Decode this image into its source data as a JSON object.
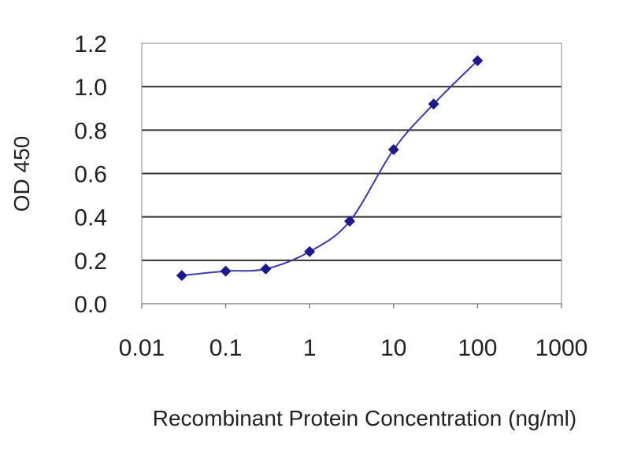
{
  "chart_data": {
    "type": "line",
    "title": "",
    "xlabel": "Recombinant Protein Concentration (ng/ml)",
    "ylabel": "OD 450",
    "x_scale": "log",
    "xlim": [
      0.01,
      1000
    ],
    "ylim": [
      0.0,
      1.2
    ],
    "x_tick_labels": [
      "0.01",
      "0.1",
      "1",
      "10",
      "100",
      "1000"
    ],
    "x_tick_values": [
      0.01,
      0.1,
      1,
      10,
      100,
      1000
    ],
    "y_tick_labels": [
      "0.0",
      "0.2",
      "0.4",
      "0.6",
      "0.8",
      "1.0",
      "1.2"
    ],
    "y_tick_values": [
      0.0,
      0.2,
      0.4,
      0.6,
      0.8,
      1.0,
      1.2
    ],
    "grid": "horizontal",
    "legend": "none",
    "series": [
      {
        "x": [
          0.03,
          0.1,
          0.3,
          1,
          3,
          10,
          30,
          100
        ],
        "y": [
          0.13,
          0.15,
          0.16,
          0.24,
          0.38,
          0.71,
          0.92,
          1.12
        ],
        "color": "#1a1a8c",
        "marker": "diamond"
      }
    ],
    "colors": {
      "grid": "#333333",
      "plot_border": "#888888",
      "line": "#3a3aa8",
      "marker": "#1a1a8c"
    }
  }
}
